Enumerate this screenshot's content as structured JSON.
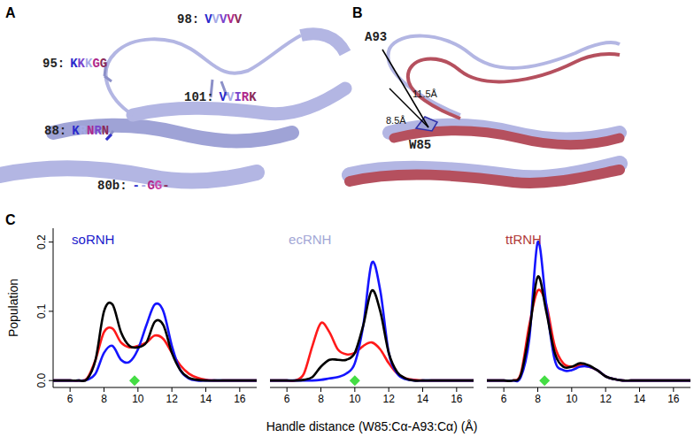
{
  "panel_labels": [
    "A",
    "B",
    "C"
  ],
  "panel_a": {
    "labels": [
      {
        "label": "98:",
        "sequence": "VVVVV",
        "colors": [
          "#2a2acc",
          "#a6aae6",
          "#7a44cc",
          "#b0288a",
          "#8a2a5a"
        ]
      },
      {
        "label": "95:",
        "sequence": "KKKGG",
        "colors": [
          "#2a2acc",
          "#7a44cc",
          "#a6aae6",
          "#b0288a",
          "#8a2a5a"
        ]
      },
      {
        "label": "101:",
        "sequence": "VVIRK",
        "colors": [
          "#2a2acc",
          "#a6aae6",
          "#7a44cc",
          "#b0288a",
          "#8a2a5a"
        ]
      },
      {
        "label": "88:",
        "sequence": "KRNRN",
        "colors": [
          "#2a2acc",
          "#a6aae6",
          "#b0288a",
          "#7a44cc",
          "#8a2a5a"
        ]
      },
      {
        "label": "80b:",
        "sequence": "--GG-",
        "colors": [
          "#2a2acc",
          "#a6aae6",
          "#b0288a",
          "#cc44aa",
          "#8a2a5a"
        ]
      }
    ]
  },
  "panel_b": {
    "residues": [
      "A93",
      "W85"
    ],
    "distances": [
      "11.5Å",
      "8.5Å"
    ]
  },
  "chart_data": [
    {
      "type": "line",
      "title": "soRNH",
      "color": "#1a1acc",
      "ylabel": "Population",
      "x": [
        5,
        5.5,
        6,
        6.5,
        7,
        7.5,
        8,
        8.5,
        9,
        9.5,
        10,
        10.5,
        11,
        11.5,
        12,
        12.5,
        13,
        13.5,
        14,
        14.5,
        15,
        15.5,
        16,
        16.5,
        17
      ],
      "series": [
        {
          "color": "#ff1a1a",
          "values": [
            0,
            0,
            0,
            0,
            0.003,
            0.03,
            0.07,
            0.075,
            0.055,
            0.048,
            0.05,
            0.055,
            0.065,
            0.06,
            0.04,
            0.022,
            0.01,
            0.004,
            0.001,
            0,
            0,
            0,
            0,
            0,
            0
          ]
        },
        {
          "color": "#1515ff",
          "values": [
            0,
            0,
            0,
            0,
            0.001,
            0.01,
            0.04,
            0.05,
            0.03,
            0.027,
            0.045,
            0.08,
            0.11,
            0.1,
            0.05,
            0.015,
            0.003,
            0,
            0,
            0,
            0,
            0,
            0,
            0,
            0
          ]
        },
        {
          "color": "#000000",
          "values": [
            0,
            0,
            0,
            0,
            0.002,
            0.03,
            0.1,
            0.11,
            0.07,
            0.05,
            0.048,
            0.055,
            0.085,
            0.08,
            0.04,
            0.015,
            0.004,
            0.001,
            0,
            0,
            0,
            0,
            0,
            0,
            0
          ]
        }
      ],
      "reference": {
        "x": 9.8,
        "y": 0,
        "color": "#44dd44",
        "marker": "diamond"
      },
      "xlim": [
        5,
        17
      ],
      "xticks": [
        6,
        8,
        10,
        12,
        14,
        16
      ],
      "ylim": [
        -0.01,
        0.22
      ],
      "yticks": [
        {
          "value": 0,
          "label": "0.0"
        },
        0.1,
        0.2
      ]
    },
    {
      "type": "line",
      "title": "ecRNH",
      "color": "#a3a7d6",
      "xlabel": "Handle distance (W85:Cα-A93:Cα) (Å)",
      "tick_labels": "x",
      "x": [
        5,
        5.5,
        6,
        6.5,
        7,
        7.5,
        8,
        8.5,
        9,
        9.5,
        10,
        10.5,
        11,
        11.5,
        12,
        12.5,
        13,
        13.5,
        14,
        14.5,
        15,
        15.5,
        16,
        16.5,
        17
      ],
      "series": [
        {
          "color": "#ff1a1a",
          "values": [
            0,
            0,
            0,
            0,
            0.01,
            0.05,
            0.083,
            0.07,
            0.045,
            0.038,
            0.04,
            0.05,
            0.055,
            0.045,
            0.025,
            0.01,
            0.003,
            0.001,
            0,
            0,
            0,
            0,
            0,
            0,
            0
          ]
        },
        {
          "color": "#1515ff",
          "values": [
            0,
            0,
            0,
            0,
            0,
            0,
            0.001,
            0.003,
            0.005,
            0.01,
            0.025,
            0.08,
            0.17,
            0.13,
            0.04,
            0.01,
            0.002,
            0,
            0,
            0,
            0,
            0,
            0,
            0,
            0
          ]
        },
        {
          "color": "#000000",
          "values": [
            0,
            0,
            0,
            0,
            0.001,
            0.005,
            0.02,
            0.03,
            0.03,
            0.03,
            0.04,
            0.08,
            0.13,
            0.1,
            0.04,
            0.012,
            0.003,
            0,
            0,
            0,
            0,
            0,
            0,
            0,
            0
          ]
        }
      ],
      "reference": {
        "x": 10,
        "y": 0,
        "color": "#44dd44",
        "marker": "diamond"
      },
      "xlim": [
        5,
        17
      ],
      "xticks": [
        6,
        8,
        10,
        12,
        14,
        16
      ],
      "ylim": [
        -0.01,
        0.22
      ]
    },
    {
      "type": "line",
      "title": "ttRNH",
      "color": "#b03a3a",
      "tick_labels": "x",
      "x": [
        5,
        5.5,
        6,
        6.5,
        7,
        7.5,
        8,
        8.5,
        9,
        9.5,
        10,
        10.5,
        11,
        11.5,
        12,
        12.5,
        13,
        13.5,
        14,
        14.5,
        15,
        15.5,
        16,
        16.5,
        17
      ],
      "series": [
        {
          "color": "#ff1a1a",
          "values": [
            0,
            0,
            0,
            0,
            0.01,
            0.08,
            0.13,
            0.11,
            0.05,
            0.025,
            0.02,
            0.022,
            0.02,
            0.015,
            0.006,
            0.002,
            0,
            0,
            0,
            0,
            0,
            0,
            0,
            0,
            0
          ]
        },
        {
          "color": "#1515ff",
          "values": [
            0,
            0,
            0,
            0,
            0.005,
            0.06,
            0.2,
            0.11,
            0.03,
            0.015,
            0.015,
            0.02,
            0.02,
            0.015,
            0.006,
            0.002,
            0,
            0,
            0,
            0,
            0,
            0,
            0,
            0,
            0
          ]
        },
        {
          "color": "#000000",
          "values": [
            0,
            0,
            0,
            0,
            0.008,
            0.07,
            0.15,
            0.1,
            0.04,
            0.02,
            0.02,
            0.025,
            0.022,
            0.015,
            0.006,
            0.002,
            0,
            0,
            0,
            0,
            0,
            0,
            0,
            0,
            0
          ]
        }
      ],
      "reference": {
        "x": 8.4,
        "y": 0,
        "color": "#44dd44",
        "marker": "diamond"
      },
      "xlim": [
        5,
        17
      ],
      "xticks": [
        6,
        8,
        10,
        12,
        14,
        16
      ],
      "ylim": [
        -0.01,
        0.22
      ]
    }
  ]
}
